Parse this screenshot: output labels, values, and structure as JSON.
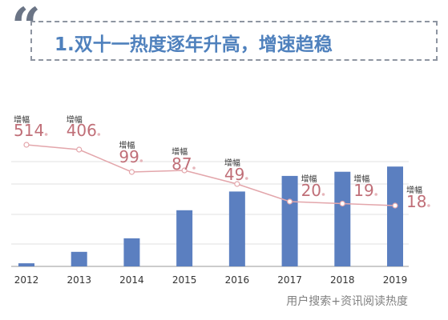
{
  "header": {
    "quote_glyph": "“",
    "title": "1.双十一热度逐年升高，增速趋稳"
  },
  "footer": {
    "source": "用户搜索+资讯阅读热度"
  },
  "chart_data": {
    "type": "bar",
    "categories": [
      "2012",
      "2013",
      "2014",
      "2015",
      "2016",
      "2017",
      "2018",
      "2019"
    ],
    "series": [
      {
        "type": "bar",
        "values": [
          3,
          14,
          27,
          54,
          72,
          87,
          91,
          96
        ]
      },
      {
        "type": "line",
        "values": [
          514,
          406,
          99,
          87,
          49,
          20,
          19,
          18
        ]
      }
    ],
    "annotation_label": "增幅",
    "bar_axis_range": [
      0,
      100
    ],
    "line_axis_range": [
      0,
      550
    ],
    "grid": true,
    "legend": "none",
    "colors": {
      "bar": "#5b7fc0",
      "line": "#e3a6ab",
      "marker_fill": "#ffffff",
      "value_label": "#c06f78",
      "grid": "#e2e2e2",
      "axis": "#9a9a9a"
    }
  }
}
